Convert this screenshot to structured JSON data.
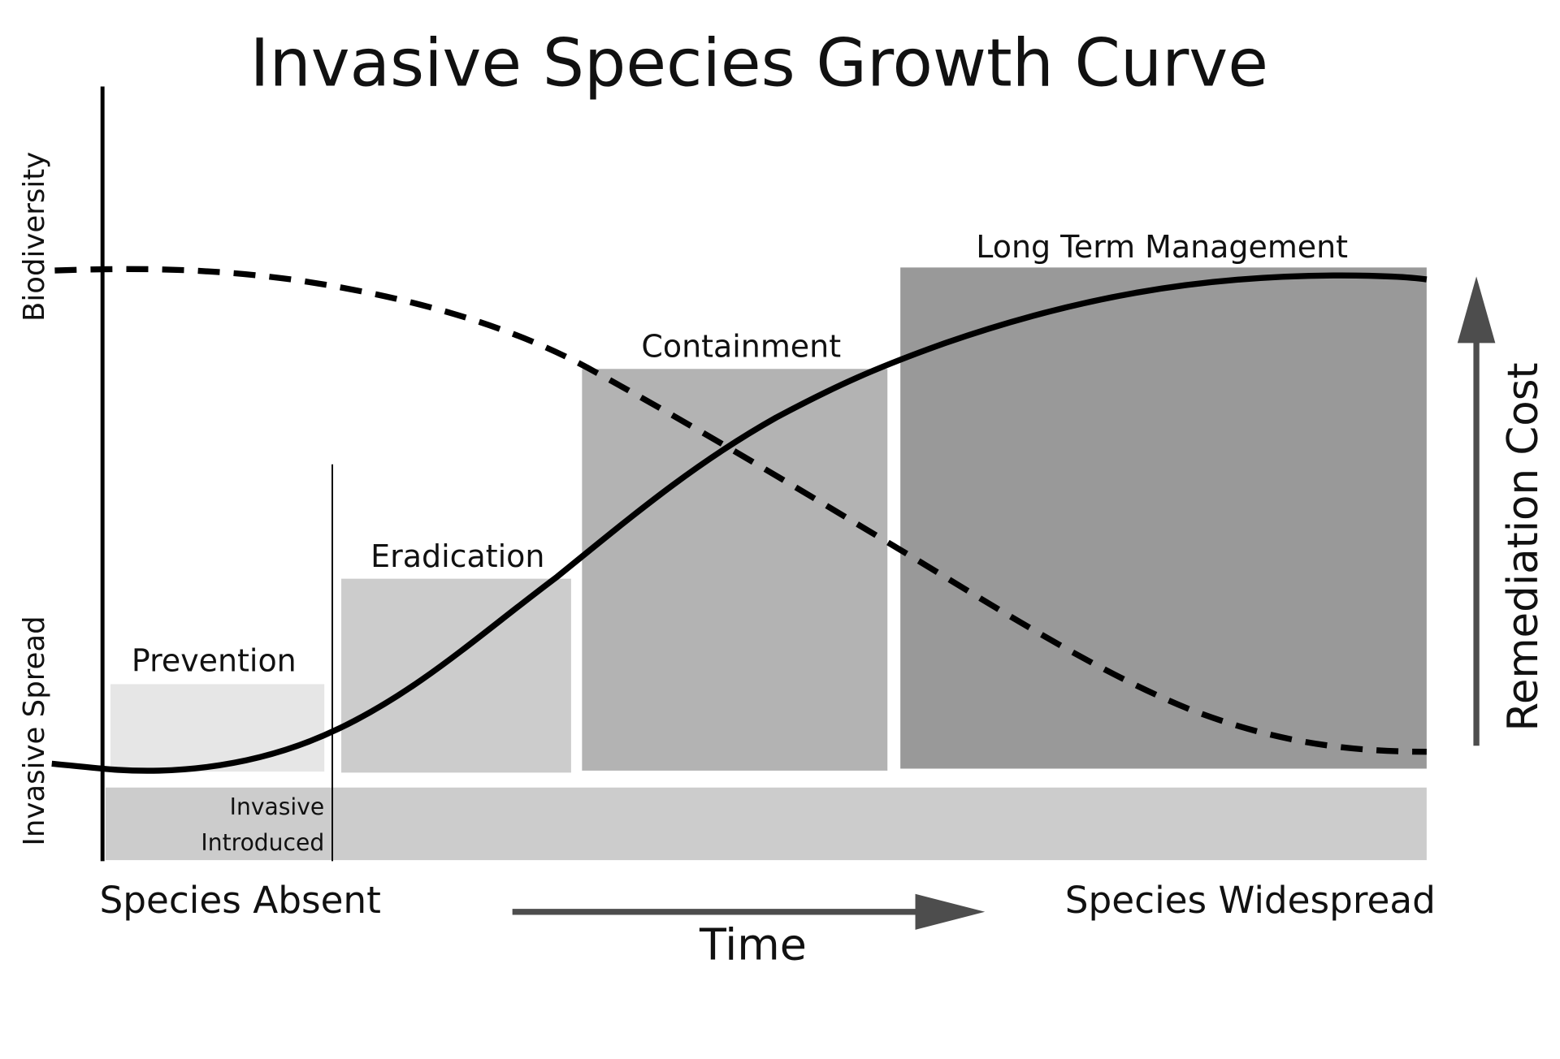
{
  "title": "Invasive Species Growth Curve",
  "left_axis": {
    "top_label": "Biodiversity",
    "bottom_label": "Invasive Spread"
  },
  "right_axis": {
    "label": "Remediation Cost",
    "arrow_color": "#4d4d4d"
  },
  "stages": [
    {
      "label": "Prevention",
      "color": "#e6e6e6"
    },
    {
      "label": "Eradication",
      "color": "#cccccc"
    },
    {
      "label": "Containment",
      "color": "#b3b3b3"
    },
    {
      "label": "Long Term Management",
      "color": "#999999"
    }
  ],
  "base_band_color": "#cccccc",
  "introduction_marker": {
    "line1": "Invasive",
    "line2": "Introduced"
  },
  "bottom": {
    "start_label": "Species Absent",
    "end_label": "Species Widespread",
    "time_label": "Time"
  },
  "curves": {
    "solid": {
      "meaning": "Invasive Spread",
      "style": "solid",
      "shape": "sigmoid-rising"
    },
    "dashed": {
      "meaning": "Biodiversity",
      "style": "dashed",
      "shape": "sigmoid-falling"
    }
  }
}
